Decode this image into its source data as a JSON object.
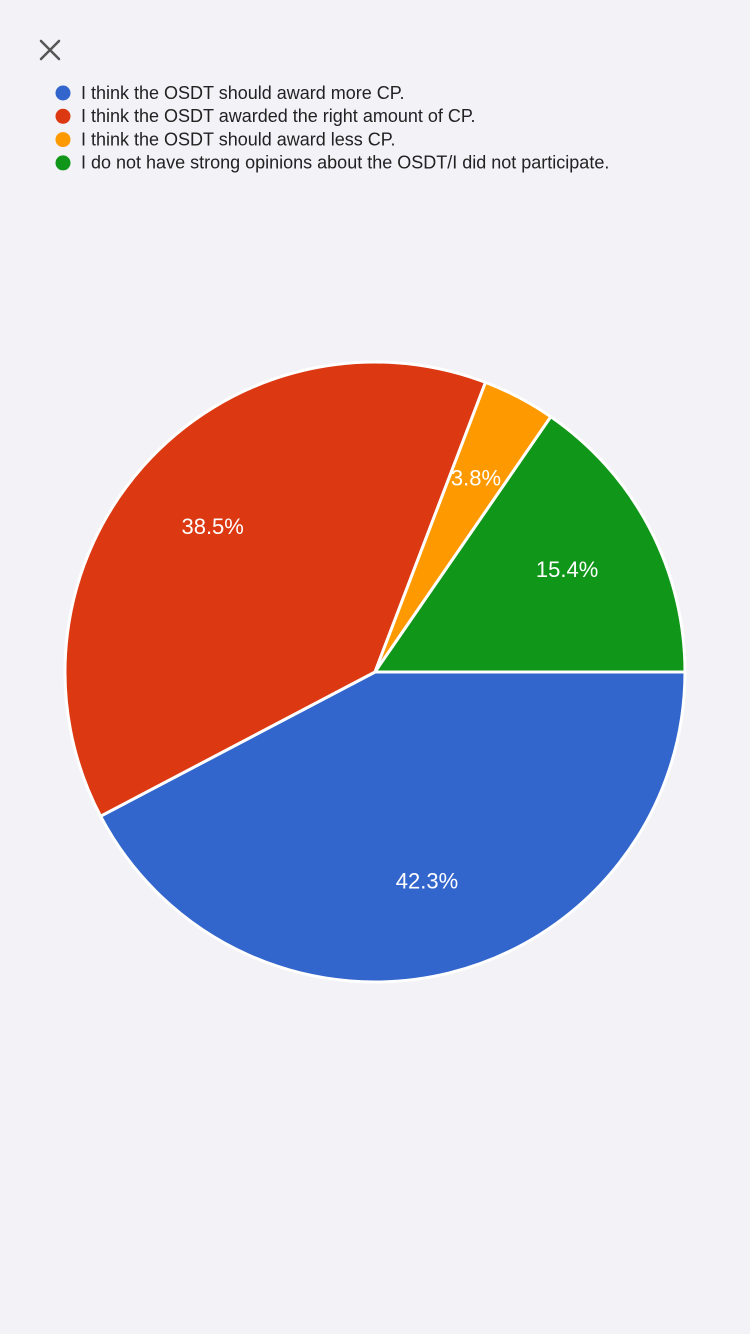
{
  "chart_data": {
    "type": "pie",
    "categories": [
      "I think the OSDT should award more CP.",
      "I think the OSDT awarded the right amount of CP.",
      "I think the OSDT should award less CP.",
      "I do not have strong opinions about the OSDT/I did not participate."
    ],
    "values": [
      42.3,
      38.5,
      3.8,
      15.4
    ],
    "value_labels": [
      "42.3%",
      "38.5%",
      "3.8%",
      "15.4%"
    ],
    "colors": [
      "#3366cc",
      "#dc3912",
      "#ff9900",
      "#109618"
    ],
    "legend": "top-left"
  }
}
